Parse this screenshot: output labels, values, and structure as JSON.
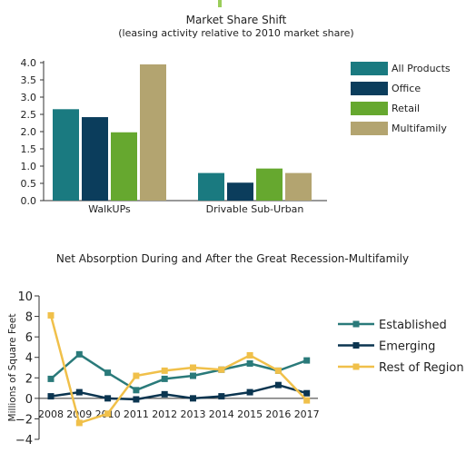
{
  "chart_data": [
    {
      "type": "bar",
      "title": "Market Share Shift",
      "subtitle": "(leasing activity relative to 2010 market share)",
      "categories": [
        "WalkUPs",
        "Drivable Sub-Urban"
      ],
      "series": [
        {
          "name": "All Products",
          "color": "#1a7a80",
          "values": [
            2.65,
            0.8
          ]
        },
        {
          "name": "Office",
          "color": "#0b3d5c",
          "values": [
            2.42,
            0.52
          ]
        },
        {
          "name": "Retail",
          "color": "#66a82f",
          "values": [
            1.98,
            0.93
          ]
        },
        {
          "name": "Multifamily",
          "color": "#b3a470",
          "values": [
            3.95,
            0.8
          ]
        }
      ],
      "ylim": [
        0,
        4.0
      ],
      "yticks": [
        "0.0",
        "0.5",
        "1.0",
        "1.5",
        "2.0",
        "2.5",
        "3.0",
        "3.5",
        "4.0"
      ],
      "legend_position": "right",
      "grid": false
    },
    {
      "type": "line",
      "title": "Net Absorption During and After the Great Recession-Multifamily",
      "ylabel": "Millions of Square Feet",
      "x": [
        "2008",
        "2009",
        "2010",
        "2011",
        "2012",
        "2013",
        "2014",
        "2015",
        "2016",
        "2017"
      ],
      "series": [
        {
          "name": "Established",
          "color": "#2a7a7a",
          "values": [
            1.9,
            4.3,
            2.5,
            0.8,
            1.9,
            2.2,
            2.8,
            3.4,
            2.7,
            3.7
          ]
        },
        {
          "name": "Emerging",
          "color": "#0b3550",
          "values": [
            0.2,
            0.6,
            0.0,
            -0.1,
            0.4,
            0.0,
            0.2,
            0.6,
            1.3,
            0.5
          ]
        },
        {
          "name": "Rest of Region",
          "color": "#f0c04a",
          "values": [
            8.1,
            -2.4,
            -1.5,
            2.2,
            2.7,
            3.0,
            2.8,
            4.2,
            2.7,
            -0.2
          ]
        }
      ],
      "ylim": [
        -4,
        10
      ],
      "yticks": [
        "−4",
        "−2",
        "0",
        "2",
        "4",
        "6",
        "8",
        "10"
      ],
      "legend_position": "right",
      "grid": false
    }
  ]
}
